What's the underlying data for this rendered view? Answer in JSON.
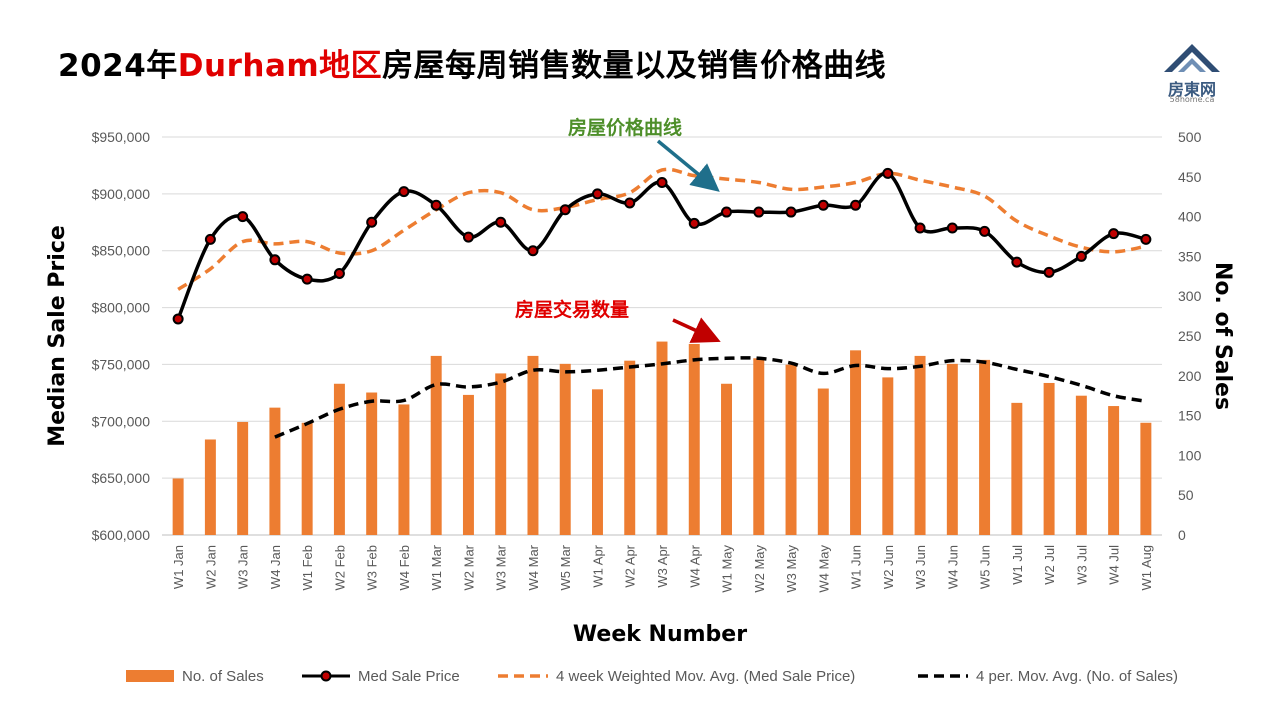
{
  "title": {
    "prefix": "2024年",
    "highlight": "Durham地区",
    "suffix": "房屋每周销售数量以及销售价格曲线"
  },
  "logo": {
    "name": "房東网",
    "url": "58home.ca"
  },
  "colors": {
    "bars": "#ed7d31",
    "price_line": "#000000",
    "price_marker": "#c00000",
    "price_ma": "#ed7d31",
    "sales_ma": "#000000",
    "arrow_price": "#1f6f8b",
    "arrow_sales": "#c00000",
    "annot_price": "#4e8f2a",
    "annot_sales": "#e00000"
  },
  "chart_data": {
    "type": "bar",
    "title": "2024年Durham地区房屋每周销售数量以及销售价格曲线",
    "xlabel": "Week Number",
    "ylabel_left": "Median Sale Price",
    "ylabel_right": "No. of Sales",
    "ylim_left": [
      600000,
      950000
    ],
    "ylim_right": [
      0,
      500
    ],
    "yticks_left": [
      "$600,000",
      "$650,000",
      "$700,000",
      "$750,000",
      "$800,000",
      "$850,000",
      "$900,000",
      "$950,000"
    ],
    "yticks_right": [
      "0",
      "50",
      "100",
      "150",
      "200",
      "250",
      "300",
      "350",
      "400",
      "450",
      "500"
    ],
    "grid": true,
    "legend_position": "bottom",
    "categories": [
      "W1 Jan",
      "W2 Jan",
      "W3 Jan",
      "W4 Jan",
      "W1 Feb",
      "W2 Feb",
      "W3 Feb",
      "W4 Feb",
      "W1 Mar",
      "W2 Mar",
      "W3 Mar",
      "W4 Mar",
      "W5 Mar",
      "W1 Apr",
      "W2 Apr",
      "W3 Apr",
      "W4 Apr",
      "W1 May",
      "W2 May",
      "W3 May",
      "W4 May",
      "W1 Jun",
      "W2 Jun",
      "W3 Jun",
      "W4 Jun",
      "W5 Jun",
      "W1 Jul",
      "W2 Jul",
      "W3 Jul",
      "W4 Jul",
      "W1 Aug"
    ],
    "series": [
      {
        "name": "No. of Sales",
        "type": "bar",
        "axis": "right",
        "values": [
          71,
          120,
          142,
          160,
          141,
          190,
          179,
          164,
          225,
          176,
          203,
          225,
          215,
          183,
          219,
          243,
          240,
          190,
          222,
          214,
          184,
          232,
          198,
          225,
          215,
          220,
          166,
          191,
          175,
          162,
          141
        ]
      },
      {
        "name": "Med Sale Price",
        "type": "line",
        "axis": "left",
        "values": [
          790000,
          860000,
          880000,
          842000,
          825000,
          830000,
          875000,
          902000,
          890000,
          862000,
          875000,
          850000,
          886000,
          900000,
          892000,
          910000,
          874000,
          884000,
          884000,
          884000,
          890000,
          890000,
          918000,
          870000,
          870000,
          867000,
          840000,
          831000,
          845000,
          865000,
          860000
        ]
      },
      {
        "name": "4 week Weighted Mov. Avg. (Med Sale Price)",
        "type": "line",
        "axis": "left",
        "values": [
          816000,
          834000,
          858000,
          856000,
          858000,
          848000,
          850000,
          868000,
          886000,
          901000,
          901000,
          886000,
          888000,
          895000,
          901000,
          921000,
          916000,
          913000,
          910000,
          904000,
          906000,
          910000,
          918000,
          912000,
          906000,
          898000,
          876000,
          863000,
          853000,
          849000,
          854000
        ]
      },
      {
        "name": "4 per. Mov. Avg. (No. of Sales)",
        "type": "line",
        "axis": "right",
        "values": [
          null,
          null,
          null,
          123,
          140,
          158,
          168,
          169,
          189,
          186,
          192,
          207,
          205,
          207,
          211,
          215,
          220,
          222,
          222,
          216,
          203,
          213,
          209,
          212,
          219,
          217,
          208,
          199,
          188,
          175,
          168
        ]
      }
    ],
    "annotations": [
      {
        "text": "房屋价格曲线"
      },
      {
        "text": "房屋交易数量"
      }
    ]
  }
}
